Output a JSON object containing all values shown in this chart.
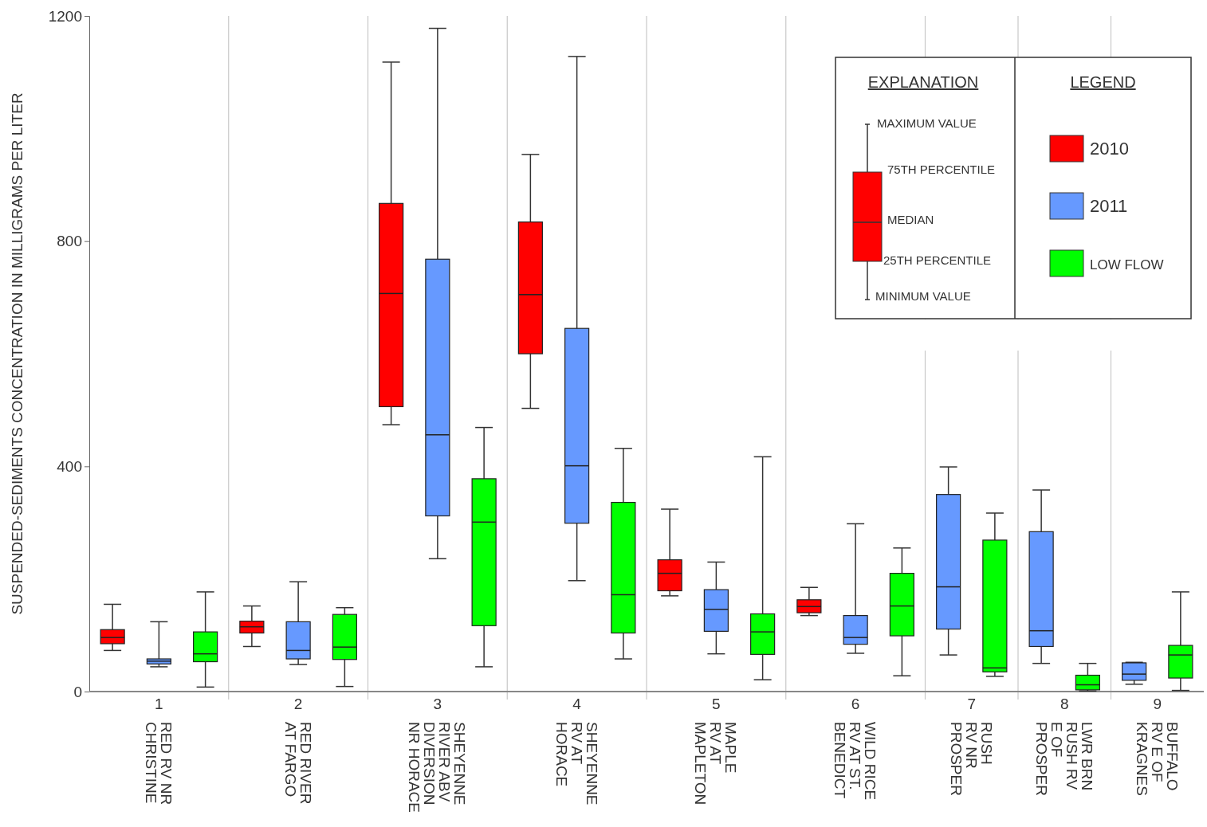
{
  "chart_data": {
    "type": "box",
    "ylabel": "SUSPENDED-SEDIMENTS CONCENTRATION IN MILLIGRAMS PER LITER",
    "categories": [
      "1\nRED RV NR\nCHRISTINE",
      "2\nRED RIVER\nAT FARGO",
      "3\nSHEYENNE\nRIVER ABV\nDIVERSION\nNR HORACE",
      "4\nSHEYENNE\nRV AT\nHORACE",
      "5\nMAPLE\nRV AT\nMAPLETON",
      "6\nWILD RICE\nRV AT ST.\nBENEDICT",
      "7\nRUSH\nRV NR\nPROSPER",
      "8\nLWR BRN\nRUSH RV\nE OF\nPROSPER",
      "9\nBUFFALO\nRV E OF\nKRAGNES"
    ],
    "ylim": [
      0,
      1200
    ],
    "yticks": [
      0,
      400,
      800,
      1200
    ],
    "grid": "x",
    "legend": "top right",
    "legend_title": "LEGEND",
    "annotations": [
      "EXPLANATION",
      "MAXIMUM VALUE",
      "75TH PERCENTILE",
      "MEDIAN",
      "25TH PERCENTILE",
      "MINIMUM VALUE"
    ],
    "series": [
      {
        "name": "2010",
        "color": "#ff0000",
        "boxes": [
          {
            "low": 73,
            "q1": 85,
            "median": 96,
            "q3": 110,
            "high": 155
          },
          {
            "low": 80,
            "q1": 104,
            "median": 115,
            "q3": 125,
            "high": 152
          },
          {
            "low": 474,
            "q1": 506,
            "median": 707,
            "q3": 867,
            "high": 1118
          },
          {
            "low": 503,
            "q1": 600,
            "median": 705,
            "q3": 834,
            "high": 954
          },
          {
            "low": 170,
            "q1": 179,
            "median": 210,
            "q3": 234,
            "high": 324
          },
          {
            "low": 135,
            "q1": 140,
            "median": 151,
            "q3": 163,
            "high": 185
          },
          null,
          null,
          null
        ]
      },
      {
        "name": "2011",
        "color": "#6699ff",
        "boxes": [
          {
            "low": 44,
            "q1": 49,
            "median": 54,
            "q3": 58,
            "high": 124
          },
          {
            "low": 48,
            "q1": 58,
            "median": 73,
            "q3": 124,
            "high": 195
          },
          {
            "low": 236,
            "q1": 312,
            "median": 456,
            "q3": 768,
            "high": 1178
          },
          {
            "low": 197,
            "q1": 299,
            "median": 401,
            "q3": 645,
            "high": 1128
          },
          {
            "low": 67,
            "q1": 107,
            "median": 146,
            "q3": 181,
            "high": 230
          },
          {
            "low": 68,
            "q1": 84,
            "median": 96,
            "q3": 135,
            "high": 298
          },
          {
            "low": 65,
            "q1": 111,
            "median": 186,
            "q3": 350,
            "high": 399
          },
          {
            "low": 50,
            "q1": 80,
            "median": 108,
            "q3": 284,
            "high": 358
          },
          {
            "low": 13,
            "q1": 20,
            "median": 31,
            "q3": 51,
            "high": 52
          }
        ]
      },
      {
        "name": "LOW FLOW",
        "color": "#00ff00",
        "boxes": [
          {
            "low": 8,
            "q1": 53,
            "median": 67,
            "q3": 106,
            "high": 177
          },
          {
            "low": 9,
            "q1": 57,
            "median": 79,
            "q3": 137,
            "high": 149
          },
          {
            "low": 44,
            "q1": 117,
            "median": 301,
            "q3": 378,
            "high": 469
          },
          {
            "low": 58,
            "q1": 104,
            "median": 172,
            "q3": 336,
            "high": 432
          },
          {
            "low": 21,
            "q1": 66,
            "median": 106,
            "q3": 138,
            "high": 417
          },
          {
            "low": 28,
            "q1": 99,
            "median": 152,
            "q3": 210,
            "high": 255
          },
          {
            "low": 27,
            "q1": 35,
            "median": 42,
            "q3": 269,
            "high": 317
          },
          {
            "low": 1,
            "q1": 3,
            "median": 12,
            "q3": 29,
            "high": 50
          },
          {
            "low": 2,
            "q1": 24,
            "median": 65,
            "q3": 82,
            "high": 177
          }
        ]
      }
    ]
  }
}
